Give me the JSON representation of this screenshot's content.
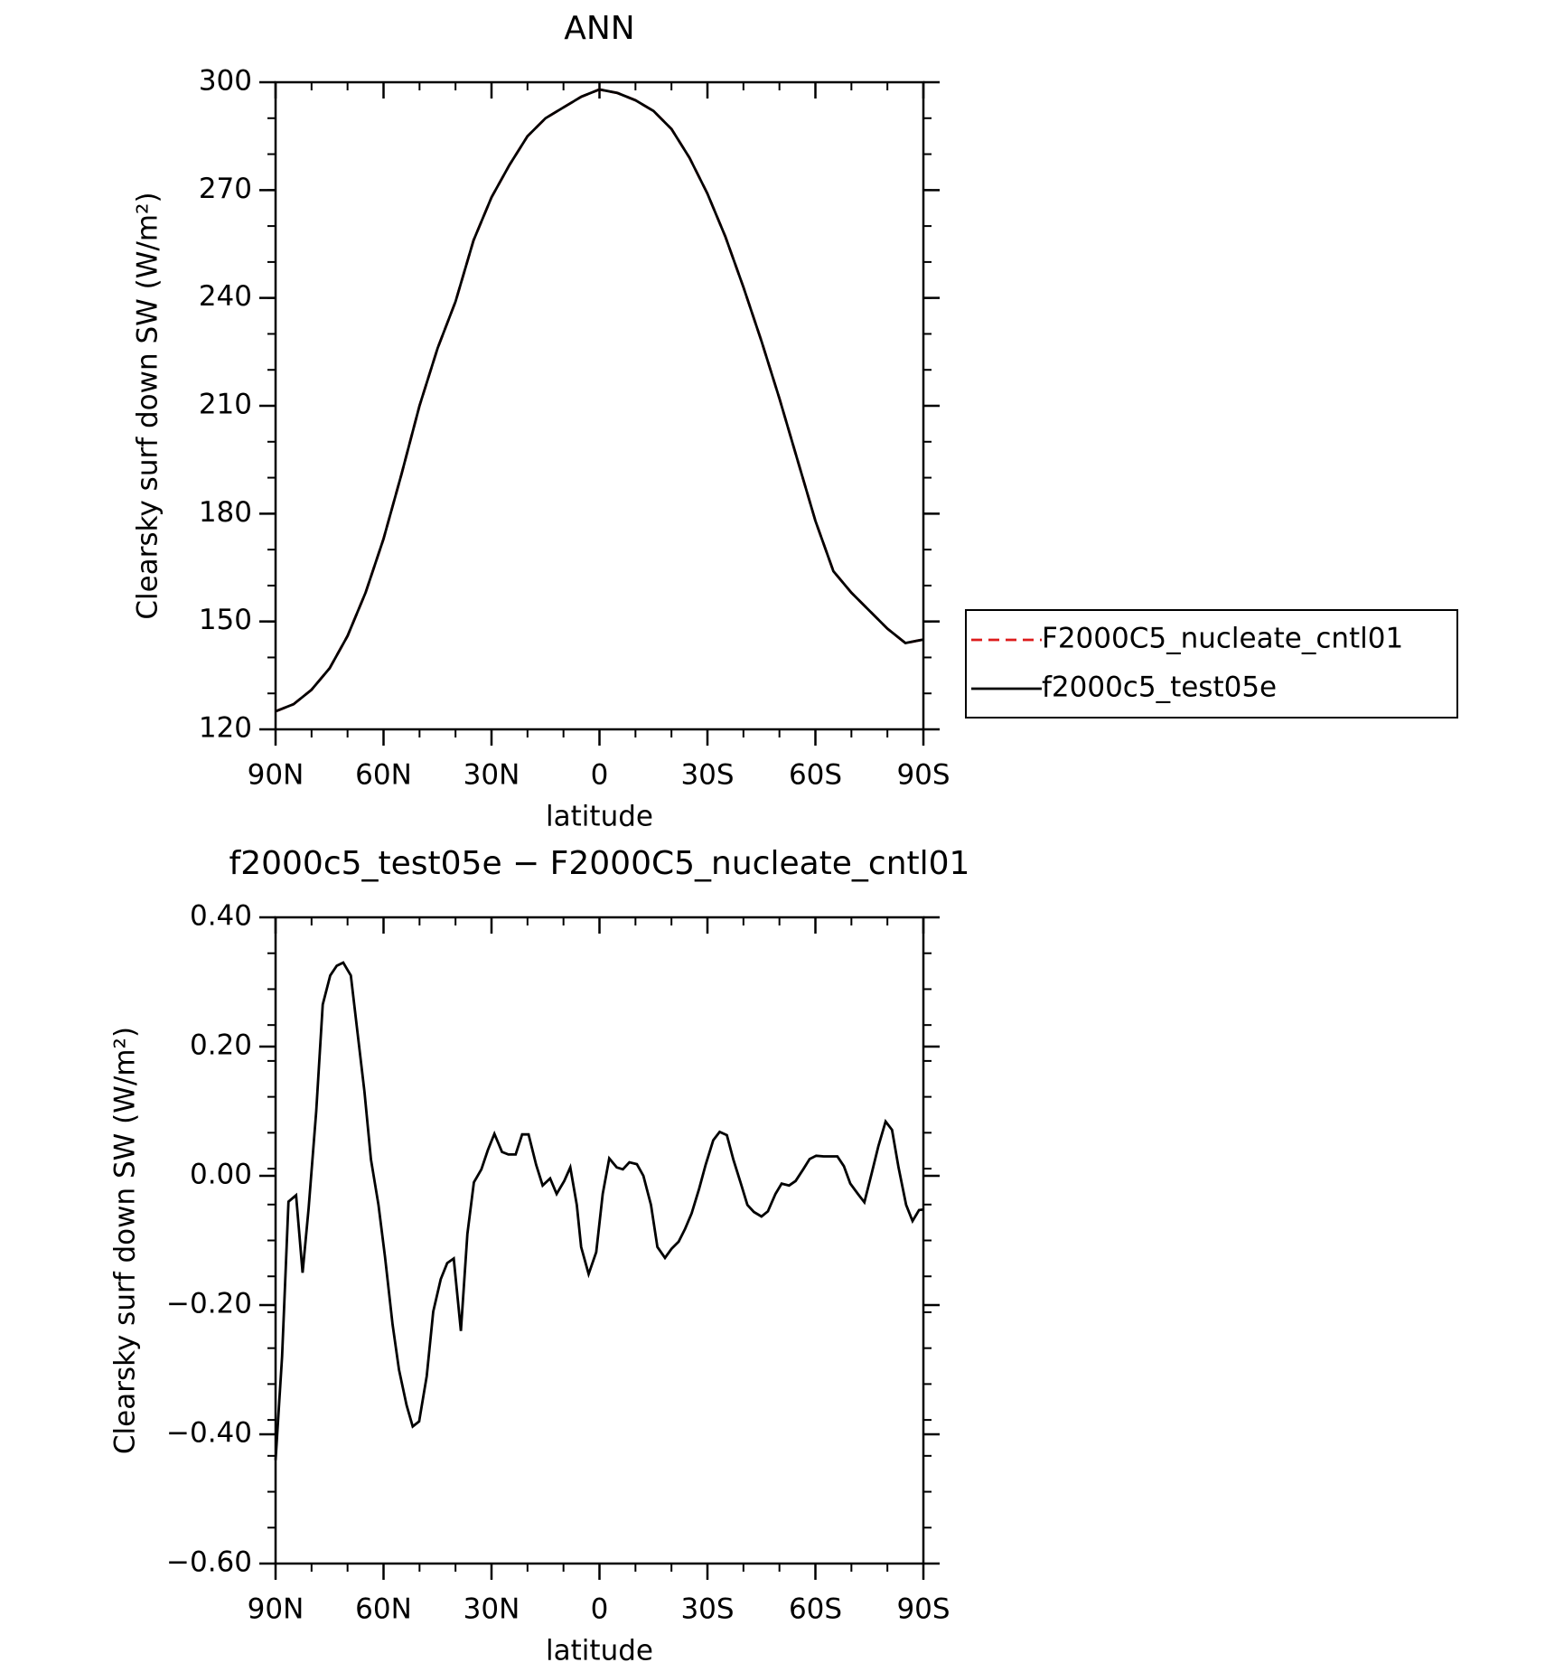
{
  "chart_data": [
    {
      "type": "line",
      "title": "ANN",
      "xlabel": "latitude",
      "ylabel": "Clearsky surf down SW (W/m²)",
      "xlim": [
        90,
        -90
      ],
      "xticks": [
        {
          "value": 90,
          "label": "90N"
        },
        {
          "value": 60,
          "label": "60N"
        },
        {
          "value": 30,
          "label": "30N"
        },
        0,
        {
          "value": -30,
          "label": "30S"
        },
        {
          "value": -60,
          "label": "60S"
        },
        {
          "value": -90,
          "label": "90S"
        }
      ],
      "ylim": [
        120,
        300
      ],
      "yticks": [
        120,
        150,
        180,
        210,
        240,
        270,
        300
      ],
      "x": [
        90,
        85,
        80,
        75,
        70,
        65,
        60,
        55,
        50,
        45,
        40,
        35,
        30,
        25,
        20,
        15,
        10,
        5,
        0,
        -5,
        -10,
        -15,
        -20,
        -25,
        -30,
        -35,
        -40,
        -45,
        -50,
        -55,
        -60,
        -65,
        -70,
        -75,
        -80,
        -85,
        -90
      ],
      "series": [
        {
          "name": "F2000C5_nucleate_cntl01",
          "color": "#dd1c1c",
          "style": "dashed",
          "values": [
            125,
            127,
            131,
            137,
            146,
            158,
            173,
            191,
            210,
            226,
            239,
            256,
            268,
            277,
            285,
            290,
            293,
            296,
            298,
            297,
            295,
            292,
            287,
            279,
            269,
            257,
            243,
            228,
            212,
            195,
            178,
            164,
            158,
            153,
            148,
            144,
            145
          ]
        },
        {
          "name": "f2000c5_test05e",
          "color": "#000000",
          "style": "solid",
          "values": [
            125,
            127,
            131,
            137,
            146,
            158,
            173,
            191,
            210,
            226,
            239,
            256,
            268,
            277,
            285,
            290,
            293,
            296,
            298,
            297,
            295,
            292,
            287,
            279,
            269,
            257,
            243,
            228,
            212,
            195,
            178,
            164,
            158,
            153,
            148,
            144,
            145
          ]
        }
      ]
    },
    {
      "type": "line",
      "title": "f2000c5_test05e − F2000C5_nucleate_cntl01",
      "xlabel": "latitude",
      "ylabel": "Clearsky surf down SW (W/m²)",
      "xlim": [
        90,
        -90
      ],
      "xticks": [
        {
          "value": 90,
          "label": "90N"
        },
        {
          "value": 60,
          "label": "60N"
        },
        {
          "value": 30,
          "label": "30N"
        },
        0,
        {
          "value": -30,
          "label": "30S"
        },
        {
          "value": -60,
          "label": "60S"
        },
        {
          "value": -90,
          "label": "90S"
        }
      ],
      "ylim": [
        -0.6,
        0.4
      ],
      "yticks": [
        {
          "value": -0.6,
          "label": "−0.60"
        },
        {
          "value": -0.4,
          "label": "−0.40"
        },
        {
          "value": -0.2,
          "label": "−0.20"
        },
        {
          "value": 0,
          "label": "0.00"
        },
        {
          "value": 0.2,
          "label": "0.20"
        },
        {
          "value": 0.4,
          "label": "0.40"
        }
      ],
      "x": [
        90,
        88.2,
        86.4,
        84.3,
        82.5,
        80.8,
        78.7,
        76.9,
        74.8,
        73.0,
        71.2,
        69.1,
        67.4,
        65.3,
        63.5,
        61.4,
        59.6,
        57.5,
        55.7,
        53.6,
        51.9,
        50.1,
        48.0,
        46.2,
        44.1,
        42.3,
        40.5,
        38.5,
        36.7,
        34.9,
        32.8,
        31.0,
        29.2,
        27.1,
        25.3,
        23.3,
        21.5,
        19.7,
        17.6,
        15.8,
        13.7,
        11.9,
        9.8,
        8.1,
        6.3,
        5.1,
        3.0,
        0.9,
        -0.9,
        -2.7,
        -4.8,
        -6.5,
        -8.3,
        -10.4,
        -12.2,
        -14.3,
        -16.1,
        -18.2,
        -20.0,
        -22.0,
        -23.8,
        -25.6,
        -27.7,
        -29.5,
        -31.6,
        -33.4,
        -35.4,
        -37.2,
        -39.3,
        -41.1,
        -42.9,
        -45.0,
        -46.8,
        -48.9,
        -50.6,
        -52.7,
        -54.5,
        -56.6,
        -58.4,
        -60.2,
        -62.3,
        -64.1,
        -66.1,
        -67.9,
        -69.7,
        -71.8,
        -73.6,
        -75.7,
        -77.5,
        -79.5,
        -81.3,
        -83.1,
        -85.2,
        -87.0,
        -88.8,
        -90
      ],
      "series": [
        {
          "color": "#000000",
          "style": "solid",
          "values": [
            -0.44,
            -0.28,
            -0.04,
            -0.03,
            -0.15,
            -0.05,
            0.1,
            0.265,
            0.31,
            0.325,
            0.33,
            0.31,
            0.23,
            0.13,
            0.025,
            -0.045,
            -0.125,
            -0.23,
            -0.3,
            -0.355,
            -0.388,
            -0.38,
            -0.31,
            -0.21,
            -0.16,
            -0.135,
            -0.128,
            -0.24,
            -0.09,
            -0.01,
            0.01,
            0.04,
            0.065,
            0.037,
            0.033,
            0.033,
            0.064,
            0.064,
            0.017,
            -0.015,
            -0.004,
            -0.028,
            -0.008,
            0.013,
            -0.045,
            -0.11,
            -0.152,
            -0.118,
            -0.028,
            0.027,
            0.013,
            0.01,
            0.021,
            0.018,
            0.0,
            -0.045,
            -0.11,
            -0.127,
            -0.113,
            -0.102,
            -0.082,
            -0.058,
            -0.02,
            0.017,
            0.055,
            0.068,
            0.063,
            0.025,
            -0.012,
            -0.045,
            -0.056,
            -0.063,
            -0.055,
            -0.028,
            -0.012,
            -0.015,
            -0.008,
            0.01,
            0.026,
            0.031,
            0.03,
            0.03,
            0.03,
            0.015,
            -0.012,
            -0.028,
            -0.041,
            0.005,
            0.046,
            0.084,
            0.071,
            0.013,
            -0.045,
            -0.07,
            -0.053,
            -0.052
          ]
        }
      ]
    }
  ]
}
